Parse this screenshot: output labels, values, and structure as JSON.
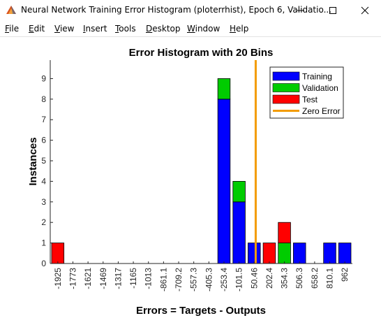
{
  "window": {
    "title": "Neural Network Training Error Histogram (ploterrhist), Epoch 6, Validatio...",
    "icon": "matlab-figure-icon",
    "controls": {
      "minimize": "minimize-icon",
      "maximize": "maximize-icon",
      "close": "close-icon"
    }
  },
  "menu": {
    "items": [
      "File",
      "Edit",
      "View",
      "Insert",
      "Tools",
      "Desktop",
      "Window",
      "Help"
    ]
  },
  "colors": {
    "training": "#0000ff",
    "validation": "#00cc00",
    "test": "#ff0000",
    "zero_error": "#f39c00",
    "axis": "#262626"
  },
  "chart_data": {
    "type": "bar",
    "stacked": true,
    "title": "Error Histogram with 20 Bins",
    "xlabel": "Errors = Targets - Outputs",
    "ylabel": "Instances",
    "ylim": [
      0,
      9.9
    ],
    "yticks": [
      0,
      1,
      2,
      3,
      4,
      5,
      6,
      7,
      8,
      9
    ],
    "categories": [
      "-1925",
      "-1773",
      "-1621",
      "-1469",
      "-1317",
      "-1165",
      "-1013",
      "-861.1",
      "-709.2",
      "-557.3",
      "-405.3",
      "-253.4",
      "-101.5",
      "50.46",
      "202.4",
      "354.3",
      "506.3",
      "658.2",
      "810.1",
      "962"
    ],
    "series": [
      {
        "name": "Training",
        "values": [
          0,
          0,
          0,
          0,
          0,
          0,
          0,
          0,
          0,
          0,
          0,
          8,
          3,
          1,
          0,
          0,
          1,
          0,
          1,
          1
        ]
      },
      {
        "name": "Validation",
        "values": [
          0,
          0,
          0,
          0,
          0,
          0,
          0,
          0,
          0,
          0,
          0,
          1,
          1,
          0,
          0,
          1,
          0,
          0,
          0,
          0
        ]
      },
      {
        "name": "Test",
        "values": [
          1,
          0,
          0,
          0,
          0,
          0,
          0,
          0,
          0,
          0,
          0,
          0,
          0,
          0,
          1,
          1,
          0,
          0,
          0,
          0
        ]
      }
    ],
    "zero_error": {
      "name": "Zero Error",
      "position_between_bins": [
        12,
        13
      ],
      "fraction": 0.68
    },
    "legend": {
      "placement": "top-right",
      "entries": [
        "Training",
        "Validation",
        "Test",
        "Zero Error"
      ]
    },
    "grid": false
  }
}
